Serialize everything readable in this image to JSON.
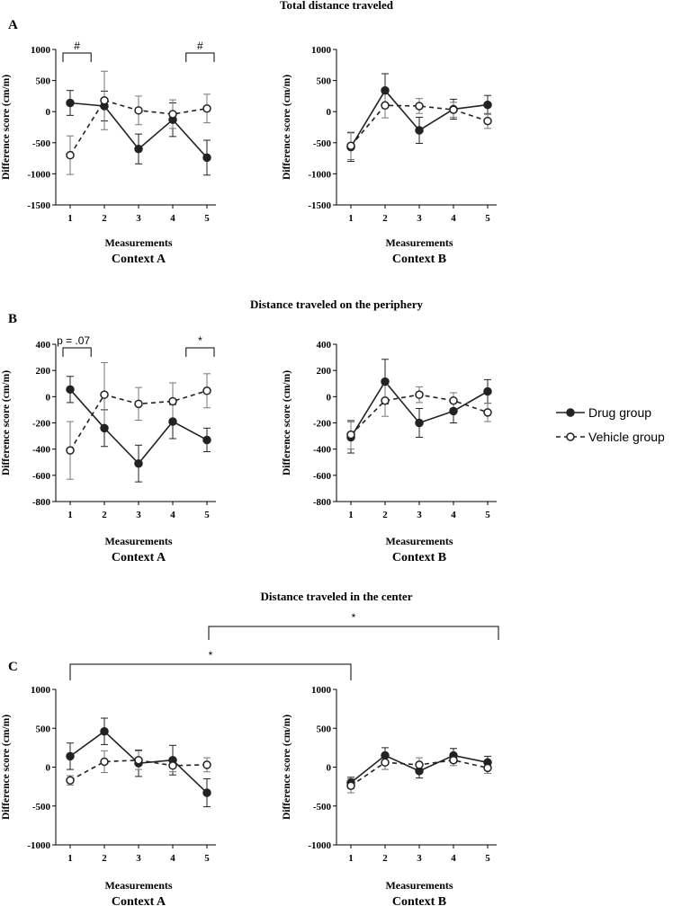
{
  "chart_data": {
    "type": "line",
    "x": [
      1,
      2,
      3,
      4,
      5
    ],
    "xlabel": "Measurements",
    "ylabel": "Difference score (cm/m)",
    "legend": {
      "position": "right",
      "entries": [
        "Drug group",
        "Vehicle group"
      ]
    },
    "panels": [
      {
        "label": "A",
        "title": "Total distance traveled",
        "ylim": [
          -1500,
          1000
        ],
        "yticks": [
          "1000",
          "500",
          "0",
          "-500",
          "-1000",
          "-1500"
        ],
        "contexts": [
          {
            "name": "Context A",
            "series": [
              {
                "name": "Drug group",
                "values": [
                  140,
                  90,
                  -600,
                  -130,
                  -740
                ],
                "errors": [
                  200,
                  240,
                  240,
                  270,
                  280
                ]
              },
              {
                "name": "Vehicle group",
                "values": [
                  -700,
                  180,
                  20,
                  -40,
                  50
                ],
                "errors": [
                  310,
                  470,
                  230,
                  230,
                  230
                ]
              }
            ],
            "annotations": [
              {
                "text": "#",
                "x1": 1,
                "x2": 1.4
              },
              {
                "text": "#",
                "x1": 4.6,
                "x2": 5
              }
            ]
          },
          {
            "name": "Context B",
            "series": [
              {
                "name": "Drug group",
                "values": [
                  -570,
                  340,
                  -300,
                  40,
                  110
                ],
                "errors": [
                  230,
                  270,
                  210,
                  160,
                  150
                ]
              },
              {
                "name": "Vehicle group",
                "values": [
                  -550,
                  100,
                  90,
                  30,
                  -150
                ],
                "errors": [
                  220,
                  200,
                  120,
                  120,
                  120
                ]
              }
            ],
            "annotations": []
          }
        ]
      },
      {
        "label": "B",
        "title": "Distance traveled on the periphery",
        "ylim": [
          -800,
          400
        ],
        "yticks": [
          "400",
          "200",
          "0",
          "-200",
          "-400",
          "-600",
          "-800"
        ],
        "contexts": [
          {
            "name": "Context A",
            "series": [
              {
                "name": "Drug group",
                "values": [
                  55,
                  -240,
                  -510,
                  -190,
                  -330
                ],
                "errors": [
                  100,
                  140,
                  140,
                  130,
                  90
                ]
              },
              {
                "name": "Vehicle group",
                "values": [
                  -410,
                  15,
                  -55,
                  -35,
                  45
                ],
                "errors": [
                  220,
                  245,
                  125,
                  140,
                  130
                ]
              }
            ],
            "annotations": [
              {
                "text": "p = .07",
                "x1": 1,
                "x2": 1.4
              },
              {
                "text": "*",
                "x1": 4.6,
                "x2": 5
              }
            ]
          },
          {
            "name": "Context B",
            "series": [
              {
                "name": "Drug group",
                "values": [
                  -310,
                  115,
                  -200,
                  -110,
                  40
                ],
                "errors": [
                  120,
                  170,
                  110,
                  90,
                  90
                ]
              },
              {
                "name": "Vehicle group",
                "values": [
                  -290,
                  -30,
                  15,
                  -30,
                  -120
                ],
                "errors": [
                  110,
                  120,
                  60,
                  60,
                  70
                ]
              }
            ],
            "annotations": []
          }
        ]
      },
      {
        "label": "C",
        "title": "Distance traveled in the center",
        "ylim": [
          -1000,
          1000
        ],
        "yticks": [
          "1000",
          "500",
          "0",
          "-500",
          "-1000"
        ],
        "contexts": [
          {
            "name": "Context A",
            "series": [
              {
                "name": "Drug group",
                "values": [
                  140,
                  460,
                  50,
                  90,
                  -330
                ],
                "errors": [
                  170,
                  170,
                  170,
                  190,
                  180
                ]
              },
              {
                "name": "Vehicle group",
                "values": [
                  -170,
                  70,
                  90,
                  20,
                  30
                ],
                "errors": [
                  60,
                  140,
                  120,
                  80,
                  90
                ]
              }
            ],
            "annotations": []
          },
          {
            "name": "Context B",
            "series": [
              {
                "name": "Drug group",
                "values": [
                  -200,
                  150,
                  -50,
                  150,
                  60
                ],
                "errors": [
                  70,
                  100,
                  90,
                  90,
                  80
                ]
              },
              {
                "name": "Vehicle group",
                "values": [
                  -240,
                  60,
                  30,
                  90,
                  -10
                ],
                "errors": [
                  90,
                  90,
                  90,
                  70,
                  70
                ]
              }
            ],
            "annotations": []
          }
        ],
        "cross_annotations": [
          {
            "text": "*",
            "from": "Context A x=1",
            "to": "Context B x=1"
          },
          {
            "text": "*",
            "from": "Context A x=5",
            "to": "Context B x=5"
          }
        ]
      }
    ]
  }
}
